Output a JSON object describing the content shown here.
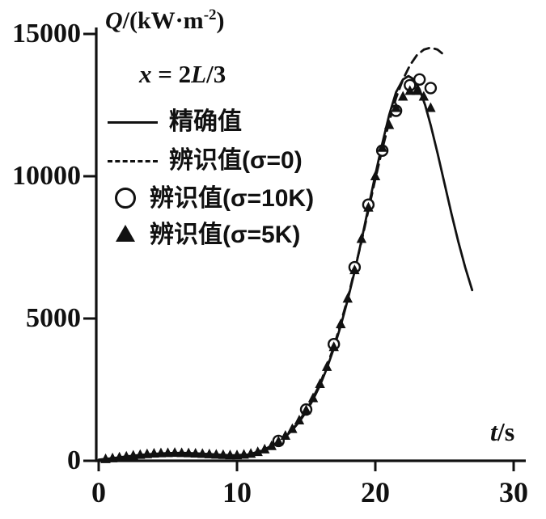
{
  "labels": {
    "y_q": "Q",
    "y_rest": "/(kW·m",
    "y_sup": "-2",
    "y_close": ")",
    "ann_x": "x",
    "ann_mid": " = 2",
    "ann_l": "L",
    "ann_end": "/3",
    "xt_t": "t",
    "xt_rest": "/s"
  },
  "colors": {
    "ink": "#111111",
    "background": "#ffffff"
  },
  "chart_data": {
    "type": "line",
    "title": "",
    "xlabel": "t/s",
    "ylabel": "Q/(kW·m-2)",
    "annotation": "x = 2L/3",
    "xlim": [
      0,
      30
    ],
    "ylim": [
      0,
      15000
    ],
    "xticks": [
      0,
      10,
      20,
      30
    ],
    "yticks": [
      0,
      5000,
      10000,
      15000
    ],
    "grid": false,
    "legend_position": "upper-left-inside",
    "series": [
      {
        "name": "精确值",
        "style": "solid-line",
        "points": [
          [
            0,
            40
          ],
          [
            1,
            90
          ],
          [
            2,
            150
          ],
          [
            3,
            205
          ],
          [
            4,
            245
          ],
          [
            5,
            270
          ],
          [
            6,
            278
          ],
          [
            7,
            262
          ],
          [
            8,
            235
          ],
          [
            9,
            205
          ],
          [
            10,
            190
          ],
          [
            10.5,
            200
          ],
          [
            11,
            235
          ],
          [
            11.5,
            300
          ],
          [
            12,
            390
          ],
          [
            12.5,
            510
          ],
          [
            13,
            660
          ],
          [
            13.5,
            850
          ],
          [
            14,
            1080
          ],
          [
            14.5,
            1370
          ],
          [
            15,
            1720
          ],
          [
            15.5,
            2150
          ],
          [
            16,
            2650
          ],
          [
            16.5,
            3250
          ],
          [
            17,
            3950
          ],
          [
            17.5,
            4750
          ],
          [
            18,
            5650
          ],
          [
            18.5,
            6650
          ],
          [
            19,
            7750
          ],
          [
            19.5,
            8900
          ],
          [
            20,
            10050
          ],
          [
            20.5,
            11150
          ],
          [
            21,
            12150
          ],
          [
            21.5,
            12950
          ],
          [
            22,
            13400
          ],
          [
            22.4,
            13520
          ],
          [
            22.8,
            13400
          ],
          [
            23.2,
            13050
          ],
          [
            23.6,
            12500
          ],
          [
            24,
            11800
          ],
          [
            24.5,
            10800
          ],
          [
            25,
            9750
          ],
          [
            25.5,
            8700
          ],
          [
            26,
            7700
          ],
          [
            26.5,
            6800
          ],
          [
            27,
            6000
          ]
        ]
      },
      {
        "name": "辨识值(σ=0)",
        "style": "dashed-line",
        "points": [
          [
            10,
            195
          ],
          [
            11,
            240
          ],
          [
            12,
            400
          ],
          [
            13,
            670
          ],
          [
            14,
            1100
          ],
          [
            15,
            1750
          ],
          [
            16,
            2700
          ],
          [
            17,
            4000
          ],
          [
            18,
            5700
          ],
          [
            19,
            7700
          ],
          [
            19.5,
            8800
          ],
          [
            20,
            9900
          ],
          [
            20.5,
            10950
          ],
          [
            21,
            11900
          ],
          [
            21.5,
            12750
          ],
          [
            22,
            13400
          ],
          [
            22.5,
            13900
          ],
          [
            23,
            14250
          ],
          [
            23.5,
            14450
          ],
          [
            24,
            14520
          ],
          [
            24.5,
            14450
          ],
          [
            25,
            14250
          ]
        ]
      },
      {
        "name": "辨识值(σ=10K)",
        "style": "open-circle",
        "points": [
          [
            13,
            700
          ],
          [
            15,
            1800
          ],
          [
            17,
            4100
          ],
          [
            18.5,
            6800
          ],
          [
            19.5,
            9000
          ],
          [
            20.5,
            10900
          ],
          [
            21.5,
            12300
          ],
          [
            22.5,
            13200
          ],
          [
            23.2,
            13400
          ],
          [
            24,
            13100
          ]
        ]
      },
      {
        "name": "辨识值(σ=5K)",
        "style": "filled-triangle",
        "points": [
          [
            0.5,
            60
          ],
          [
            1,
            90
          ],
          [
            1.5,
            120
          ],
          [
            2,
            150
          ],
          [
            2.5,
            185
          ],
          [
            3,
            210
          ],
          [
            3.5,
            235
          ],
          [
            4,
            255
          ],
          [
            4.5,
            265
          ],
          [
            5,
            275
          ],
          [
            5.5,
            280
          ],
          [
            6,
            275
          ],
          [
            6.5,
            265
          ],
          [
            7,
            255
          ],
          [
            7.5,
            245
          ],
          [
            8,
            230
          ],
          [
            8.5,
            215
          ],
          [
            9,
            205
          ],
          [
            9.5,
            195
          ],
          [
            10,
            195
          ],
          [
            10.5,
            215
          ],
          [
            11,
            250
          ],
          [
            11.5,
            310
          ],
          [
            12,
            400
          ],
          [
            12.5,
            520
          ],
          [
            13,
            680
          ],
          [
            13.5,
            880
          ],
          [
            14,
            1120
          ],
          [
            14.5,
            1420
          ],
          [
            15,
            1780
          ],
          [
            15.5,
            2200
          ],
          [
            16,
            2700
          ],
          [
            16.5,
            3300
          ],
          [
            17,
            4000
          ],
          [
            17.5,
            4800
          ],
          [
            18,
            5700
          ],
          [
            18.5,
            6700
          ],
          [
            19,
            7800
          ],
          [
            19.5,
            8900
          ],
          [
            20,
            10000
          ],
          [
            20.5,
            11000
          ],
          [
            21,
            11800
          ],
          [
            21.5,
            12400
          ],
          [
            22,
            12800
          ],
          [
            22.5,
            13000
          ],
          [
            23,
            13000
          ],
          [
            23.5,
            12800
          ],
          [
            24,
            12400
          ]
        ]
      }
    ]
  }
}
